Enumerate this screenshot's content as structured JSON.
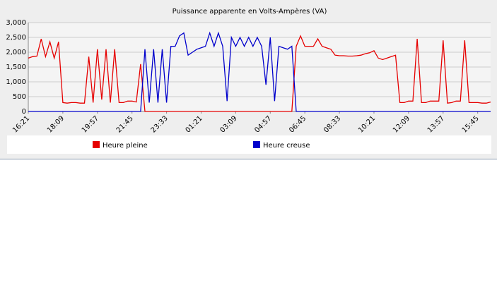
{
  "chart_data": {
    "type": "line",
    "title": "Puissance apparente en Volts-Ampères (VA)",
    "categories": [
      "16:21",
      null,
      null,
      null,
      null,
      null,
      null,
      null,
      "18:09",
      null,
      null,
      null,
      null,
      null,
      null,
      null,
      "19:57",
      null,
      null,
      null,
      null,
      null,
      null,
      null,
      "21:45",
      null,
      null,
      null,
      null,
      null,
      null,
      null,
      "23:33",
      null,
      null,
      null,
      null,
      null,
      null,
      null,
      "01:21",
      null,
      null,
      null,
      null,
      null,
      null,
      null,
      "03:09",
      null,
      null,
      null,
      null,
      null,
      null,
      null,
      "04:57",
      null,
      null,
      null,
      null,
      null,
      null,
      null,
      "06:45",
      null,
      null,
      null,
      null,
      null,
      null,
      null,
      "08:33",
      null,
      null,
      null,
      null,
      null,
      null,
      null,
      "10:21",
      null,
      null,
      null,
      null,
      null,
      null,
      null,
      "12:09",
      null,
      null,
      null,
      null,
      null,
      null,
      null,
      "13:57",
      null,
      null,
      null,
      null,
      null,
      null,
      null,
      "15:45",
      null,
      null,
      null
    ],
    "series": [
      {
        "name": "Heure pleine",
        "color": "#e60000",
        "values": [
          1800,
          1850,
          1870,
          2450,
          1850,
          2350,
          1800,
          2350,
          300,
          280,
          300,
          300,
          280,
          280,
          1850,
          300,
          2100,
          400,
          2100,
          300,
          2100,
          300,
          300,
          350,
          350,
          320,
          1600,
          0,
          0,
          0,
          0,
          0,
          0,
          0,
          0,
          0,
          0,
          0,
          0,
          0,
          0,
          0,
          0,
          0,
          0,
          0,
          0,
          0,
          0,
          0,
          0,
          0,
          0,
          0,
          0,
          0,
          0,
          0,
          0,
          0,
          0,
          0,
          2200,
          2550,
          2200,
          2200,
          2200,
          2450,
          2200,
          2150,
          2100,
          1900,
          1880,
          1880,
          1870,
          1870,
          1880,
          1900,
          1950,
          1980,
          2050,
          1800,
          1750,
          1800,
          1850,
          1900,
          300,
          300,
          350,
          350,
          2450,
          300,
          300,
          350,
          350,
          350,
          2400,
          280,
          300,
          350,
          350,
          2400,
          300,
          300,
          300,
          280,
          280,
          320
        ]
      },
      {
        "name": "Heure creuse",
        "color": "#0000cc",
        "values": [
          0,
          0,
          0,
          0,
          0,
          0,
          0,
          0,
          0,
          0,
          0,
          0,
          0,
          0,
          0,
          0,
          0,
          0,
          0,
          0,
          0,
          0,
          0,
          0,
          0,
          0,
          0,
          2100,
          300,
          2100,
          300,
          2100,
          300,
          2200,
          2200,
          2550,
          2650,
          1900,
          2000,
          2100,
          2150,
          2200,
          2650,
          2200,
          2650,
          2200,
          350,
          2500,
          2200,
          2500,
          2200,
          2500,
          2200,
          2500,
          2200,
          900,
          2500,
          350,
          2200,
          2150,
          2100,
          2200,
          0,
          0,
          0,
          0,
          0,
          0,
          0,
          0,
          0,
          0,
          0,
          0,
          0,
          0,
          0,
          0,
          0,
          0,
          0,
          0,
          0,
          0,
          0,
          0,
          0,
          0,
          0,
          0,
          0,
          0,
          0,
          0,
          0,
          0,
          0,
          0,
          0,
          0,
          0,
          0,
          0,
          0,
          0,
          0,
          0,
          0
        ]
      }
    ],
    "ylim": [
      0,
      3000
    ],
    "yticks": [
      0,
      500,
      {
        "value": 1000,
        "label": "1,000"
      },
      {
        "value": 1500,
        "label": "1,500"
      },
      {
        "value": 2000,
        "label": "2,000"
      },
      {
        "value": 2500,
        "label": "2,500"
      },
      {
        "value": 3000,
        "label": "3,000"
      }
    ],
    "grid": true
  }
}
